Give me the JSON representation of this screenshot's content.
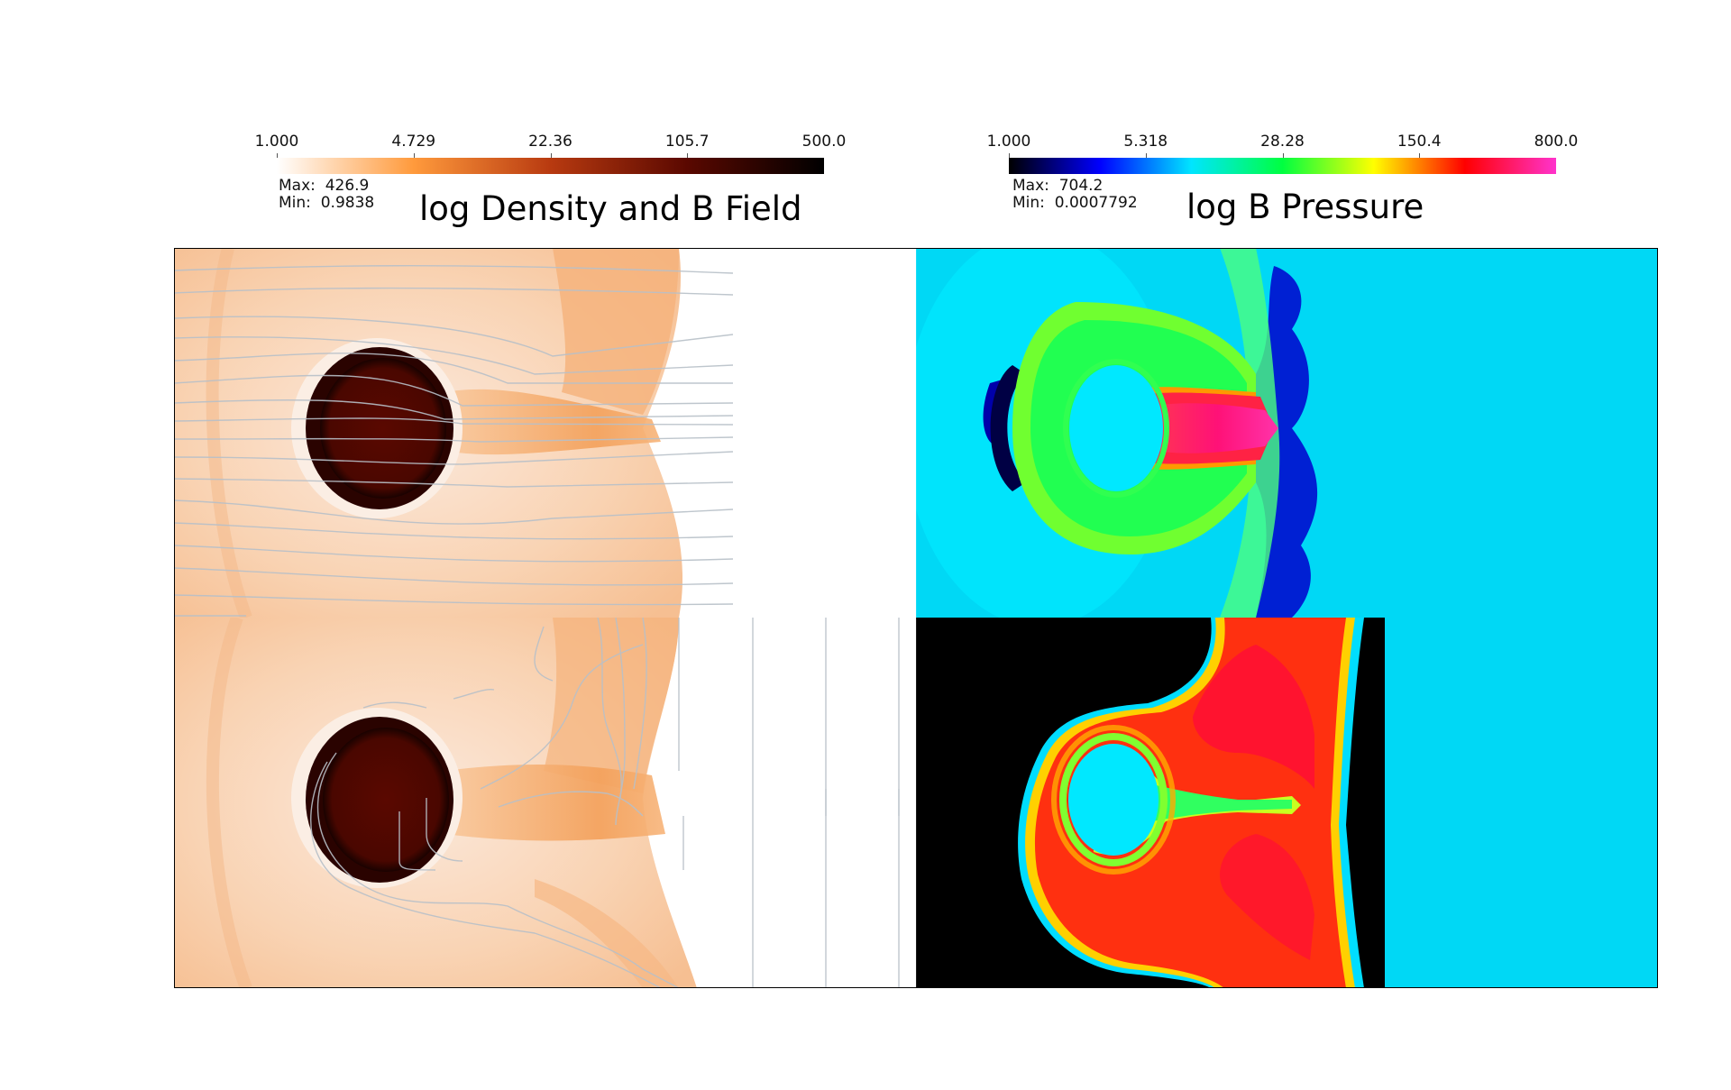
{
  "left_panel": {
    "title": "log Density and B Field",
    "colorbar": {
      "ticks": [
        "1.000",
        "4.729",
        "22.36",
        "105.7",
        "500.0"
      ],
      "colors": [
        "#ffffff",
        "#ff9a3c",
        "#b83a10",
        "#5a0800",
        "#000000"
      ]
    },
    "max_label": "Max:",
    "max_value": "426.9",
    "min_label": "Min:",
    "min_value": "0.9838"
  },
  "right_panel": {
    "title": "log B Pressure",
    "colorbar": {
      "ticks": [
        "1.000",
        "5.318",
        "28.28",
        "150.4",
        "800.0"
      ],
      "colors": [
        "#000000",
        "#0000ff",
        "#00e5ff",
        "#00ff40",
        "#ffff00",
        "#ff0000",
        "#ff33cc"
      ]
    },
    "max_label": "Max:",
    "max_value": "704.2",
    "min_label": "Min:",
    "min_value": "0.0007792"
  }
}
